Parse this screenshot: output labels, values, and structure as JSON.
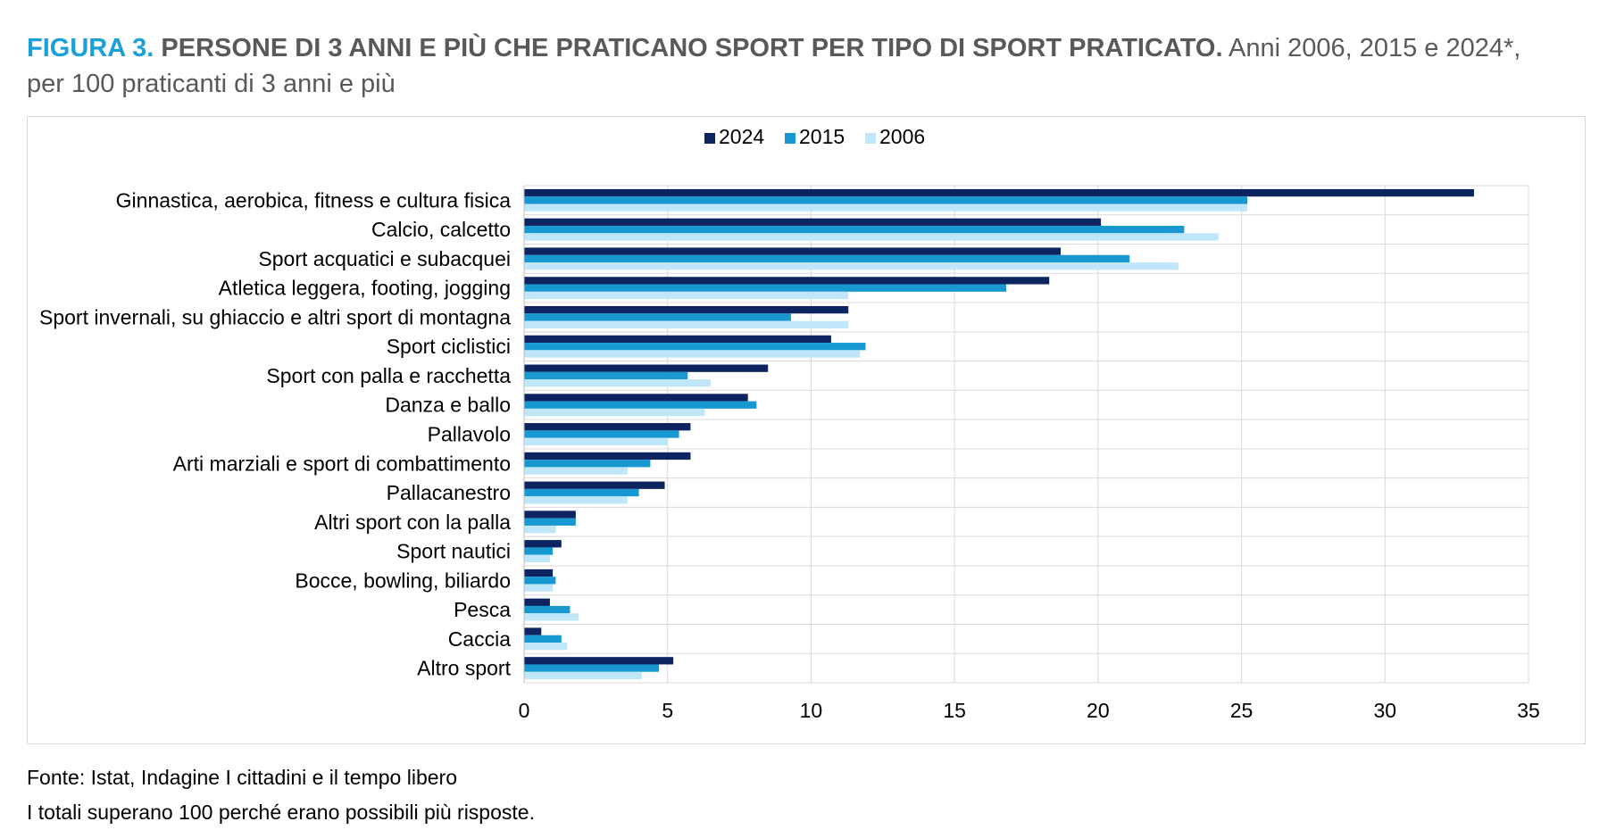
{
  "header": {
    "figure_label": "FIGURA 3.",
    "title_bold": "PERSONE DI 3 ANNI E PIÙ CHE PRATICANO SPORT PER TIPO DI SPORT PRATICATO.",
    "title_rest": "Anni 2006, 2015 e 2024*,",
    "subtitle": "per 100 praticanti di 3 anni e più"
  },
  "footer": {
    "source": "Fonte: Istat, Indagine I cittadini e il tempo libero",
    "note": "I totali superano 100 perché erano possibili più risposte."
  },
  "chart_data": {
    "type": "bar",
    "orientation": "horizontal",
    "categories": [
      "Ginnastica, aerobica, fitness e cultura fisica",
      "Calcio, calcetto",
      "Sport acquatici e subacquei",
      "Atletica leggera, footing, jogging",
      "Sport invernali, su ghiaccio e altri sport di montagna",
      "Sport ciclistici",
      "Sport con palla e racchetta",
      "Danza e ballo",
      "Pallavolo",
      "Arti marziali e sport di combattimento",
      "Pallacanestro",
      "Altri sport con la palla",
      "Sport nautici",
      "Bocce, bowling, biliardo",
      "Pesca",
      "Caccia",
      "Altro sport"
    ],
    "series": [
      {
        "name": "2024",
        "color": "#0d2461",
        "values": [
          33.1,
          20.1,
          18.7,
          18.3,
          11.3,
          10.7,
          8.5,
          7.8,
          5.8,
          5.8,
          4.9,
          1.8,
          1.3,
          1.0,
          0.9,
          0.6,
          5.2
        ]
      },
      {
        "name": "2015",
        "color": "#1798d1",
        "values": [
          25.2,
          23.0,
          21.1,
          16.8,
          9.3,
          11.9,
          5.7,
          8.1,
          5.4,
          4.4,
          4.0,
          1.8,
          1.0,
          1.1,
          1.6,
          1.3,
          4.7
        ]
      },
      {
        "name": "2006",
        "color": "#bfe7f9",
        "values": [
          25.2,
          24.2,
          22.8,
          11.3,
          11.3,
          11.7,
          6.5,
          6.3,
          5.0,
          3.6,
          3.6,
          1.1,
          0.9,
          1.0,
          1.9,
          1.5,
          4.1
        ]
      }
    ],
    "xlim": [
      0,
      35
    ],
    "xticks": [
      "0",
      "5",
      "10",
      "15",
      "20",
      "25",
      "30",
      "35"
    ],
    "grid": true,
    "legend_position": "top-center"
  }
}
